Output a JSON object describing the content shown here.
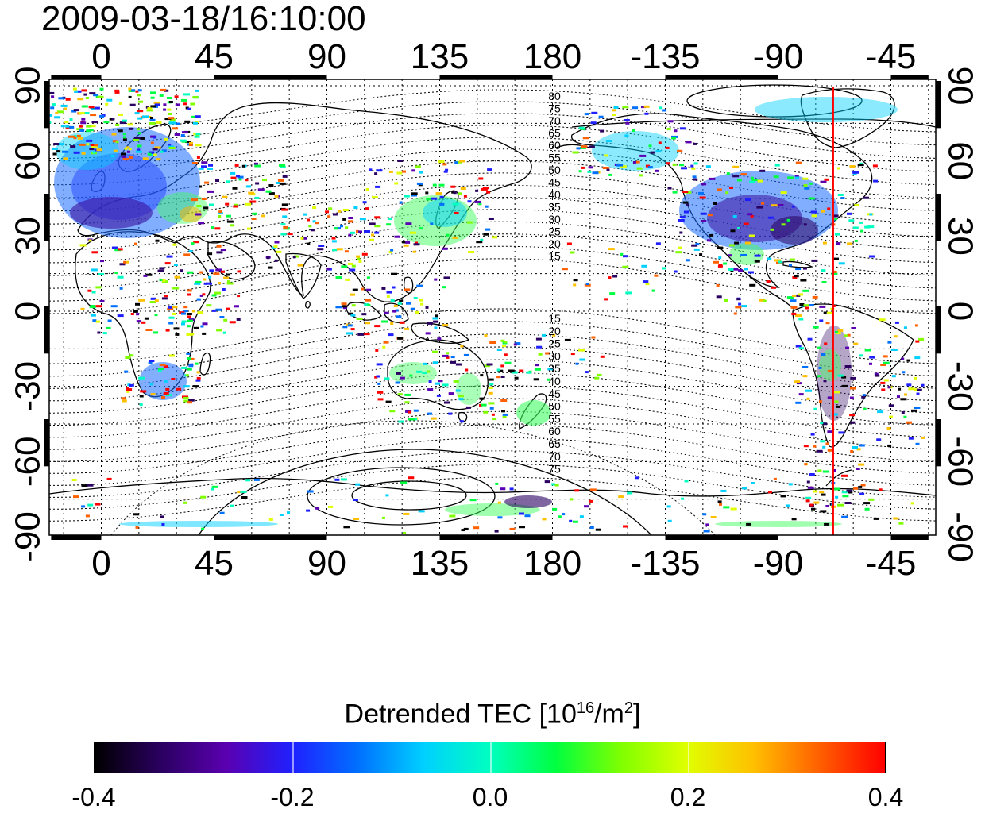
{
  "title": "2009-03-18/16:10:00",
  "map": {
    "lon_ticks": [
      "0",
      "45",
      "90",
      "135",
      "180",
      "-135",
      "-90",
      "-45"
    ],
    "lat_ticks": [
      "90",
      "60",
      "30",
      "0",
      "-30",
      "-60",
      "-90"
    ],
    "contour_labels_north": [
      "80",
      "75",
      "70",
      "65",
      "60",
      "55",
      "50",
      "45",
      "40",
      "35",
      "30",
      "25",
      "20",
      "15"
    ],
    "contour_labels_south": [
      "15",
      "20",
      "25",
      "30",
      "35",
      "40",
      "45",
      "50",
      "55",
      "60",
      "65",
      "70",
      "75"
    ],
    "marker_longitude": -68,
    "marker_color": "#ff0000"
  },
  "colorbar": {
    "title_main": "Detrended TEC  [10",
    "title_exp1": "16",
    "title_mid": "/m",
    "title_exp2": "2",
    "title_end": "]",
    "labels": [
      "-0.4",
      "-0.2",
      "0.0",
      "0.2",
      "0.4"
    ],
    "range": [
      -0.4,
      0.4
    ],
    "colors": [
      "#000000",
      "#2a0060",
      "#5a00b0",
      "#2020ff",
      "#0070ff",
      "#00d0ff",
      "#00ffc0",
      "#00ff40",
      "#80ff00",
      "#e0ff00",
      "#ffc000",
      "#ff6000",
      "#ff0000"
    ]
  }
}
